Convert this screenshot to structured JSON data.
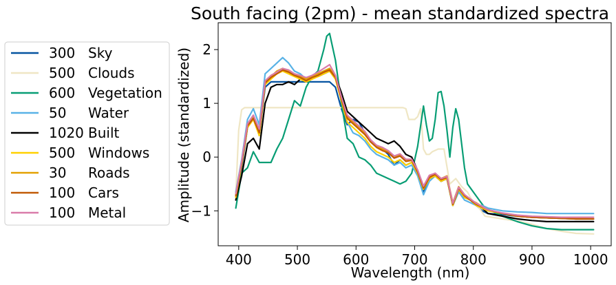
{
  "chart_data": {
    "type": "line",
    "title": "South facing (2pm) - mean standardized spectra",
    "xlabel": "Wavelength (nm)",
    "ylabel": "Amplitude (standardized)",
    "xlim": [
      365,
      1035
    ],
    "ylim": [
      -1.65,
      2.5
    ],
    "xticks": [
      400,
      500,
      600,
      700,
      800,
      900,
      1000
    ],
    "yticks": [
      -1,
      0,
      1,
      2
    ],
    "ytick_labels": [
      "−1",
      "0",
      "1",
      "2"
    ],
    "grid": false,
    "legend_position": "left",
    "series": [
      {
        "count": "300",
        "name": "Sky",
        "color": "#0352a0",
        "x": [
          395,
          405,
          415,
          425,
          435,
          445,
          455,
          465,
          475,
          485,
          495,
          505,
          515,
          525,
          535,
          545,
          555,
          565,
          575,
          585,
          595,
          605,
          615,
          625,
          635,
          645,
          655,
          665,
          675,
          685,
          695,
          705,
          715,
          725,
          735,
          745,
          755,
          765,
          775,
          785,
          795,
          805,
          815,
          825,
          850,
          875,
          900,
          925,
          950,
          975,
          1005
        ],
        "y": [
          -0.75,
          -0.2,
          0.55,
          0.75,
          0.4,
          1.3,
          1.4,
          1.4,
          1.4,
          1.4,
          1.4,
          1.4,
          1.4,
          1.4,
          1.4,
          1.4,
          1.4,
          1.3,
          0.9,
          0.6,
          0.7,
          0.65,
          0.45,
          0.3,
          0.2,
          0.15,
          0.05,
          -0.15,
          -0.05,
          -0.15,
          -0.1,
          -0.3,
          -0.65,
          -0.4,
          -0.35,
          -0.45,
          -0.4,
          -0.9,
          -0.6,
          -0.75,
          -0.8,
          -0.9,
          -1.0,
          -1.05,
          -1.07,
          -1.1,
          -1.12,
          -1.13,
          -1.14,
          -1.15,
          -1.15
        ]
      },
      {
        "count": "500",
        "name": "Clouds",
        "color": "#efe6c4",
        "x": [
          395,
          400,
          405,
          410,
          415,
          425,
          450,
          500,
          550,
          600,
          650,
          680,
          685,
          690,
          700,
          705,
          710,
          715,
          720,
          725,
          730,
          740,
          750,
          760,
          770,
          780,
          790,
          800,
          810,
          820,
          850,
          880,
          900,
          925,
          950,
          975,
          1005
        ],
        "y": [
          -0.7,
          0.5,
          0.88,
          0.92,
          0.92,
          0.92,
          0.92,
          0.92,
          0.92,
          0.92,
          0.92,
          0.92,
          0.9,
          0.7,
          0.7,
          0.75,
          0.9,
          0.15,
          0.05,
          0.05,
          0.1,
          0.15,
          0.15,
          -0.5,
          -0.4,
          -0.55,
          -0.65,
          -0.85,
          -0.95,
          -1.1,
          -1.15,
          -1.2,
          -1.25,
          -1.33,
          -1.38,
          -1.42,
          -1.43
        ]
      },
      {
        "count": "600",
        "name": "Vegetation",
        "color": "#079d74",
        "x": [
          395,
          405,
          415,
          425,
          435,
          445,
          455,
          465,
          475,
          485,
          495,
          505,
          515,
          525,
          535,
          545,
          550,
          555,
          565,
          575,
          585,
          595,
          605,
          615,
          625,
          635,
          645,
          655,
          665,
          675,
          685,
          695,
          705,
          715,
          720,
          725,
          730,
          735,
          740,
          745,
          750,
          755,
          760,
          765,
          770,
          775,
          780,
          785,
          790,
          800,
          810,
          820,
          850,
          875,
          900,
          925,
          950,
          975,
          1005
        ],
        "y": [
          -0.95,
          -0.3,
          -0.2,
          0.1,
          -0.1,
          -0.1,
          -0.1,
          0.15,
          0.35,
          0.7,
          1.05,
          0.95,
          1.3,
          1.5,
          1.6,
          2.0,
          2.25,
          2.3,
          1.8,
          1.0,
          0.35,
          0.25,
          0.0,
          -0.05,
          -0.15,
          -0.3,
          -0.35,
          -0.4,
          -0.45,
          -0.5,
          -0.45,
          -0.3,
          0.2,
          0.95,
          0.6,
          0.3,
          0.35,
          0.7,
          1.2,
          1.22,
          0.95,
          0.5,
          0.0,
          0.55,
          0.9,
          0.7,
          0.25,
          -0.2,
          -0.5,
          -0.65,
          -0.8,
          -0.95,
          -1.1,
          -1.2,
          -1.28,
          -1.33,
          -1.35,
          -1.35,
          -1.35
        ]
      },
      {
        "count": "50",
        "name": "Water",
        "color": "#58b2e6",
        "x": [
          395,
          405,
          415,
          425,
          435,
          445,
          455,
          465,
          475,
          485,
          495,
          505,
          515,
          525,
          535,
          545,
          555,
          565,
          575,
          585,
          595,
          605,
          615,
          625,
          635,
          645,
          655,
          665,
          675,
          685,
          695,
          705,
          715,
          725,
          735,
          745,
          755,
          765,
          775,
          785,
          795,
          805,
          815,
          825,
          850,
          875,
          900,
          925,
          950,
          975,
          1005
        ],
        "y": [
          -0.65,
          -0.05,
          0.7,
          0.9,
          0.6,
          1.55,
          1.65,
          1.75,
          1.85,
          1.75,
          1.6,
          1.55,
          1.45,
          1.5,
          1.55,
          1.6,
          1.65,
          1.5,
          1.05,
          0.65,
          0.45,
          0.4,
          0.3,
          0.15,
          0.05,
          0.0,
          -0.05,
          -0.15,
          -0.1,
          -0.2,
          -0.15,
          -0.35,
          -0.7,
          -0.45,
          -0.35,
          -0.45,
          -0.4,
          -0.9,
          -0.65,
          -0.8,
          -0.85,
          -0.9,
          -0.9,
          -0.95,
          -1.0,
          -1.02,
          -1.03,
          -1.05,
          -1.05,
          -1.05,
          -1.05
        ]
      },
      {
        "count": "1020",
        "name": "Built",
        "color": "#000000",
        "x": [
          395,
          405,
          415,
          425,
          435,
          445,
          455,
          465,
          475,
          485,
          495,
          505,
          515,
          525,
          535,
          545,
          555,
          565,
          575,
          585,
          595,
          605,
          615,
          625,
          635,
          645,
          655,
          665,
          675,
          685,
          695,
          705,
          715,
          725,
          735,
          745,
          755,
          765,
          775,
          785,
          795,
          805,
          815,
          825,
          850,
          875,
          900,
          925,
          950,
          975,
          1005
        ],
        "y": [
          -0.8,
          -0.35,
          0.25,
          0.35,
          0.15,
          1.0,
          1.3,
          1.35,
          1.35,
          1.4,
          1.35,
          1.45,
          1.4,
          1.5,
          1.5,
          1.55,
          1.6,
          1.5,
          1.2,
          0.85,
          0.75,
          0.65,
          0.55,
          0.45,
          0.35,
          0.3,
          0.25,
          0.3,
          0.2,
          0.05,
          0.0,
          -0.25,
          -0.55,
          -0.4,
          -0.35,
          -0.45,
          -0.4,
          -0.9,
          -0.6,
          -0.75,
          -0.8,
          -0.9,
          -0.95,
          -1.05,
          -1.1,
          -1.15,
          -1.18,
          -1.2,
          -1.2,
          -1.2,
          -1.2
        ]
      },
      {
        "count": "500",
        "name": "Windows",
        "color": "#ffd000",
        "x": [
          395,
          405,
          415,
          425,
          435,
          445,
          455,
          465,
          475,
          485,
          495,
          505,
          515,
          525,
          535,
          545,
          555,
          565,
          575,
          585,
          595,
          605,
          615,
          625,
          635,
          645,
          655,
          665,
          675,
          685,
          695,
          705,
          715,
          725,
          735,
          745,
          755,
          765,
          775,
          785,
          795,
          805,
          815,
          825,
          850,
          875,
          900,
          925,
          950,
          975,
          1005
        ],
        "y": [
          -0.75,
          -0.15,
          0.55,
          0.7,
          0.4,
          1.35,
          1.45,
          1.55,
          1.6,
          1.55,
          1.5,
          1.45,
          1.4,
          1.45,
          1.5,
          1.55,
          1.6,
          1.45,
          1.05,
          0.65,
          0.55,
          0.45,
          0.35,
          0.2,
          0.1,
          0.05,
          0.0,
          -0.1,
          -0.05,
          -0.15,
          -0.1,
          -0.3,
          -0.6,
          -0.4,
          -0.35,
          -0.45,
          -0.4,
          -0.9,
          -0.6,
          -0.75,
          -0.8,
          -0.9,
          -0.95,
          -1.0,
          -1.05,
          -1.1,
          -1.12,
          -1.13,
          -1.14,
          -1.15,
          -1.15
        ]
      },
      {
        "count": "30",
        "name": "Roads",
        "color": "#e3a102",
        "x": [
          395,
          405,
          415,
          425,
          435,
          445,
          455,
          465,
          475,
          485,
          495,
          505,
          515,
          525,
          535,
          545,
          555,
          565,
          575,
          585,
          595,
          605,
          615,
          625,
          635,
          645,
          655,
          665,
          675,
          685,
          695,
          705,
          715,
          725,
          735,
          745,
          755,
          765,
          775,
          785,
          795,
          805,
          815,
          825,
          850,
          875,
          900,
          925,
          950,
          975,
          1005
        ],
        "y": [
          -0.7,
          -0.1,
          0.6,
          0.75,
          0.5,
          1.4,
          1.5,
          1.6,
          1.65,
          1.6,
          1.55,
          1.5,
          1.45,
          1.5,
          1.55,
          1.6,
          1.65,
          1.5,
          1.1,
          0.75,
          0.65,
          0.55,
          0.45,
          0.3,
          0.2,
          0.15,
          0.1,
          0.0,
          0.05,
          -0.05,
          -0.05,
          -0.25,
          -0.55,
          -0.35,
          -0.3,
          -0.4,
          -0.35,
          -0.85,
          -0.55,
          -0.7,
          -0.8,
          -0.85,
          -0.92,
          -0.98,
          -1.05,
          -1.1,
          -1.12,
          -1.13,
          -1.14,
          -1.14,
          -1.15
        ]
      },
      {
        "count": "100",
        "name": "Cars",
        "color": "#c15a06",
        "x": [
          395,
          405,
          415,
          425,
          435,
          445,
          455,
          465,
          475,
          485,
          495,
          505,
          515,
          525,
          535,
          545,
          555,
          565,
          575,
          585,
          595,
          605,
          615,
          625,
          635,
          645,
          655,
          665,
          675,
          685,
          695,
          705,
          715,
          725,
          735,
          745,
          755,
          765,
          775,
          785,
          795,
          805,
          815,
          825,
          850,
          875,
          900,
          925,
          950,
          975,
          1005
        ],
        "y": [
          -0.72,
          -0.12,
          0.58,
          0.72,
          0.45,
          1.38,
          1.48,
          1.55,
          1.62,
          1.58,
          1.52,
          1.48,
          1.42,
          1.48,
          1.52,
          1.58,
          1.62,
          1.48,
          1.08,
          0.72,
          0.62,
          0.52,
          0.42,
          0.28,
          0.18,
          0.12,
          0.08,
          -0.02,
          0.02,
          -0.08,
          -0.06,
          -0.28,
          -0.58,
          -0.38,
          -0.32,
          -0.42,
          -0.38,
          -0.88,
          -0.58,
          -0.72,
          -0.8,
          -0.88,
          -0.93,
          -0.98,
          -1.05,
          -1.1,
          -1.12,
          -1.13,
          -1.14,
          -1.15,
          -1.15
        ]
      },
      {
        "count": "100",
        "name": "Metal",
        "color": "#d97ba9",
        "x": [
          395,
          405,
          415,
          425,
          435,
          445,
          455,
          465,
          475,
          485,
          495,
          505,
          515,
          525,
          535,
          545,
          555,
          565,
          575,
          585,
          595,
          605,
          615,
          625,
          635,
          645,
          655,
          665,
          675,
          685,
          695,
          705,
          715,
          725,
          735,
          745,
          755,
          765,
          775,
          785,
          795,
          805,
          815,
          825,
          850,
          875,
          900,
          925,
          950,
          975,
          1005
        ],
        "y": [
          -0.68,
          -0.08,
          0.62,
          0.78,
          0.52,
          1.42,
          1.52,
          1.58,
          1.65,
          1.62,
          1.55,
          1.52,
          1.48,
          1.52,
          1.58,
          1.65,
          1.72,
          1.52,
          1.12,
          0.78,
          0.68,
          0.58,
          0.48,
          0.32,
          0.22,
          0.18,
          0.12,
          0.02,
          0.06,
          -0.04,
          -0.04,
          -0.24,
          -0.54,
          -0.34,
          -0.3,
          -0.4,
          -0.36,
          -0.86,
          -0.56,
          -0.7,
          -0.78,
          -0.86,
          -0.92,
          -0.98,
          -1.04,
          -1.08,
          -1.1,
          -1.11,
          -1.12,
          -1.12,
          -1.12
        ]
      }
    ]
  }
}
